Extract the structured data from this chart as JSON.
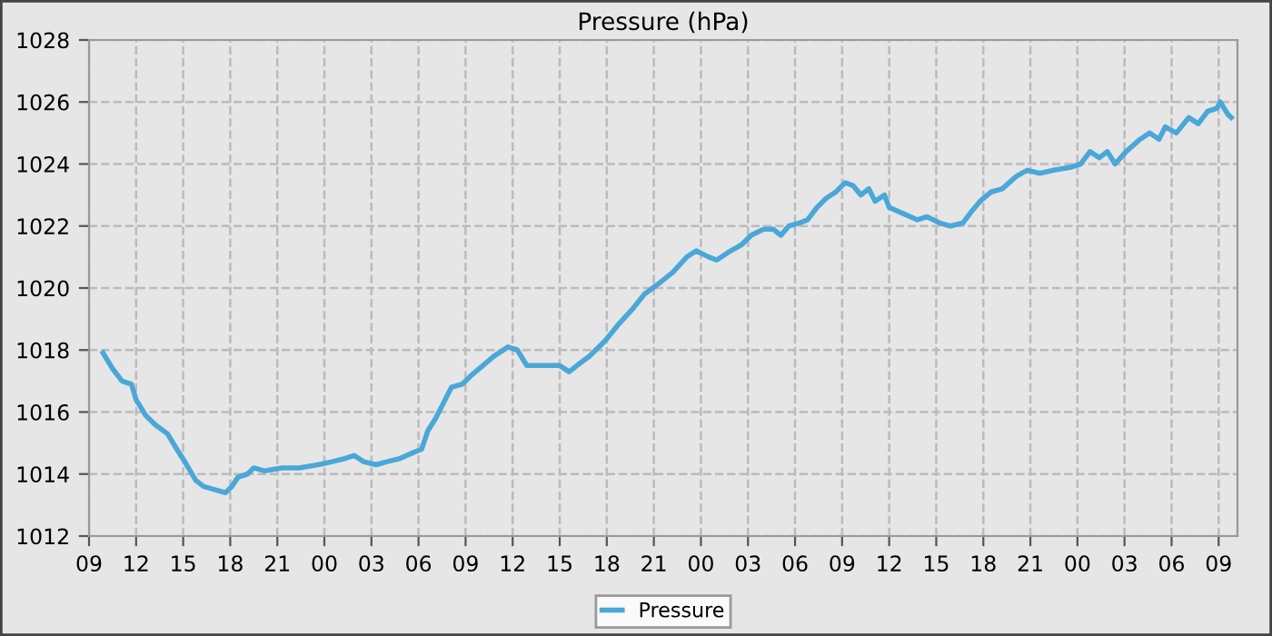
{
  "chart_data": {
    "type": "line",
    "title": "Pressure (hPa)",
    "xlim": [
      9,
      82.2
    ],
    "xticks": [
      {
        "value": 9,
        "label": "09"
      },
      {
        "value": 12,
        "label": "12"
      },
      {
        "value": 15,
        "label": "15"
      },
      {
        "value": 18,
        "label": "18"
      },
      {
        "value": 21,
        "label": "21"
      },
      {
        "value": 24,
        "label": "00"
      },
      {
        "value": 27,
        "label": "03"
      },
      {
        "value": 30,
        "label": "06"
      },
      {
        "value": 33,
        "label": "09"
      },
      {
        "value": 36,
        "label": "12"
      },
      {
        "value": 39,
        "label": "15"
      },
      {
        "value": 42,
        "label": "18"
      },
      {
        "value": 45,
        "label": "21"
      },
      {
        "value": 48,
        "label": "00"
      },
      {
        "value": 51,
        "label": "03"
      },
      {
        "value": 54,
        "label": "06"
      },
      {
        "value": 57,
        "label": "09"
      },
      {
        "value": 60,
        "label": "12"
      },
      {
        "value": 63,
        "label": "15"
      },
      {
        "value": 66,
        "label": "18"
      },
      {
        "value": 69,
        "label": "21"
      },
      {
        "value": 72,
        "label": "00"
      },
      {
        "value": 75,
        "label": "03"
      },
      {
        "value": 78,
        "label": "06"
      },
      {
        "value": 81,
        "label": "09"
      }
    ],
    "ylim": [
      1012,
      1028
    ],
    "yticks": [
      1012,
      1014,
      1016,
      1018,
      1020,
      1022,
      1024,
      1026,
      1028
    ],
    "grid": true,
    "legend": "bottom",
    "line_style": "solid",
    "series": [
      {
        "name": "Pressure",
        "color": "#4aa7d8",
        "x": [
          9.9,
          10.5,
          11.1,
          11.7,
          12.0,
          12.6,
          13.2,
          14.0,
          14.6,
          15.1,
          15.8,
          16.3,
          17.0,
          17.7,
          18.1,
          18.5,
          19.1,
          19.5,
          20.2,
          21.3,
          22.4,
          23.6,
          24.5,
          25.3,
          25.9,
          26.5,
          27.3,
          28.0,
          28.8,
          29.7,
          30.2,
          30.6,
          31.1,
          31.6,
          32.1,
          32.8,
          33.4,
          34.1,
          34.8,
          35.7,
          36.3,
          36.9,
          38.1,
          39.0,
          39.6,
          40.1,
          40.9,
          41.9,
          42.7,
          43.6,
          44.4,
          45.2,
          46.2,
          47.1,
          47.7,
          48.5,
          49.0,
          49.9,
          50.6,
          51.2,
          52.0,
          52.6,
          53.1,
          53.6,
          54.3,
          54.8,
          55.4,
          56.0,
          56.6,
          57.2,
          57.7,
          58.2,
          58.7,
          59.1,
          59.7,
          60.0,
          60.9,
          61.8,
          62.4,
          63.2,
          63.9,
          64.7,
          65.3,
          65.8,
          66.5,
          67.2,
          68.1,
          68.8,
          69.6,
          70.5,
          71.6,
          72.2,
          72.8,
          73.4,
          73.9,
          74.4,
          75.1,
          76.0,
          76.6,
          77.2,
          77.6,
          78.3,
          79.1,
          79.7,
          80.3,
          80.9,
          81.1,
          81.6,
          81.8
        ],
        "values": [
          1017.9,
          1017.4,
          1017.0,
          1016.9,
          1016.4,
          1015.9,
          1015.6,
          1015.3,
          1014.8,
          1014.4,
          1013.8,
          1013.6,
          1013.5,
          1013.4,
          1013.6,
          1013.9,
          1014.0,
          1014.2,
          1014.1,
          1014.2,
          1014.2,
          1014.3,
          1014.4,
          1014.5,
          1014.6,
          1014.4,
          1014.3,
          1014.4,
          1014.5,
          1014.7,
          1014.8,
          1015.4,
          1015.8,
          1016.3,
          1016.8,
          1016.9,
          1017.2,
          1017.5,
          1017.8,
          1018.1,
          1018.0,
          1017.5,
          1017.5,
          1017.5,
          1017.3,
          1017.5,
          1017.8,
          1018.3,
          1018.8,
          1019.3,
          1019.8,
          1020.1,
          1020.5,
          1021.0,
          1021.2,
          1021.0,
          1020.9,
          1021.2,
          1021.4,
          1021.7,
          1021.9,
          1021.9,
          1021.7,
          1022.0,
          1022.1,
          1022.2,
          1022.6,
          1022.9,
          1023.1,
          1023.4,
          1023.3,
          1023.0,
          1023.2,
          1022.8,
          1023.0,
          1022.6,
          1022.4,
          1022.2,
          1022.3,
          1022.1,
          1022.0,
          1022.1,
          1022.5,
          1022.8,
          1023.1,
          1023.2,
          1023.6,
          1023.8,
          1023.7,
          1023.8,
          1023.9,
          1024.0,
          1024.4,
          1024.2,
          1024.4,
          1024.0,
          1024.4,
          1024.8,
          1025.0,
          1024.8,
          1025.2,
          1025.0,
          1025.5,
          1025.3,
          1025.7,
          1025.8,
          1026.0,
          1025.6,
          1025.5
        ]
      }
    ]
  }
}
